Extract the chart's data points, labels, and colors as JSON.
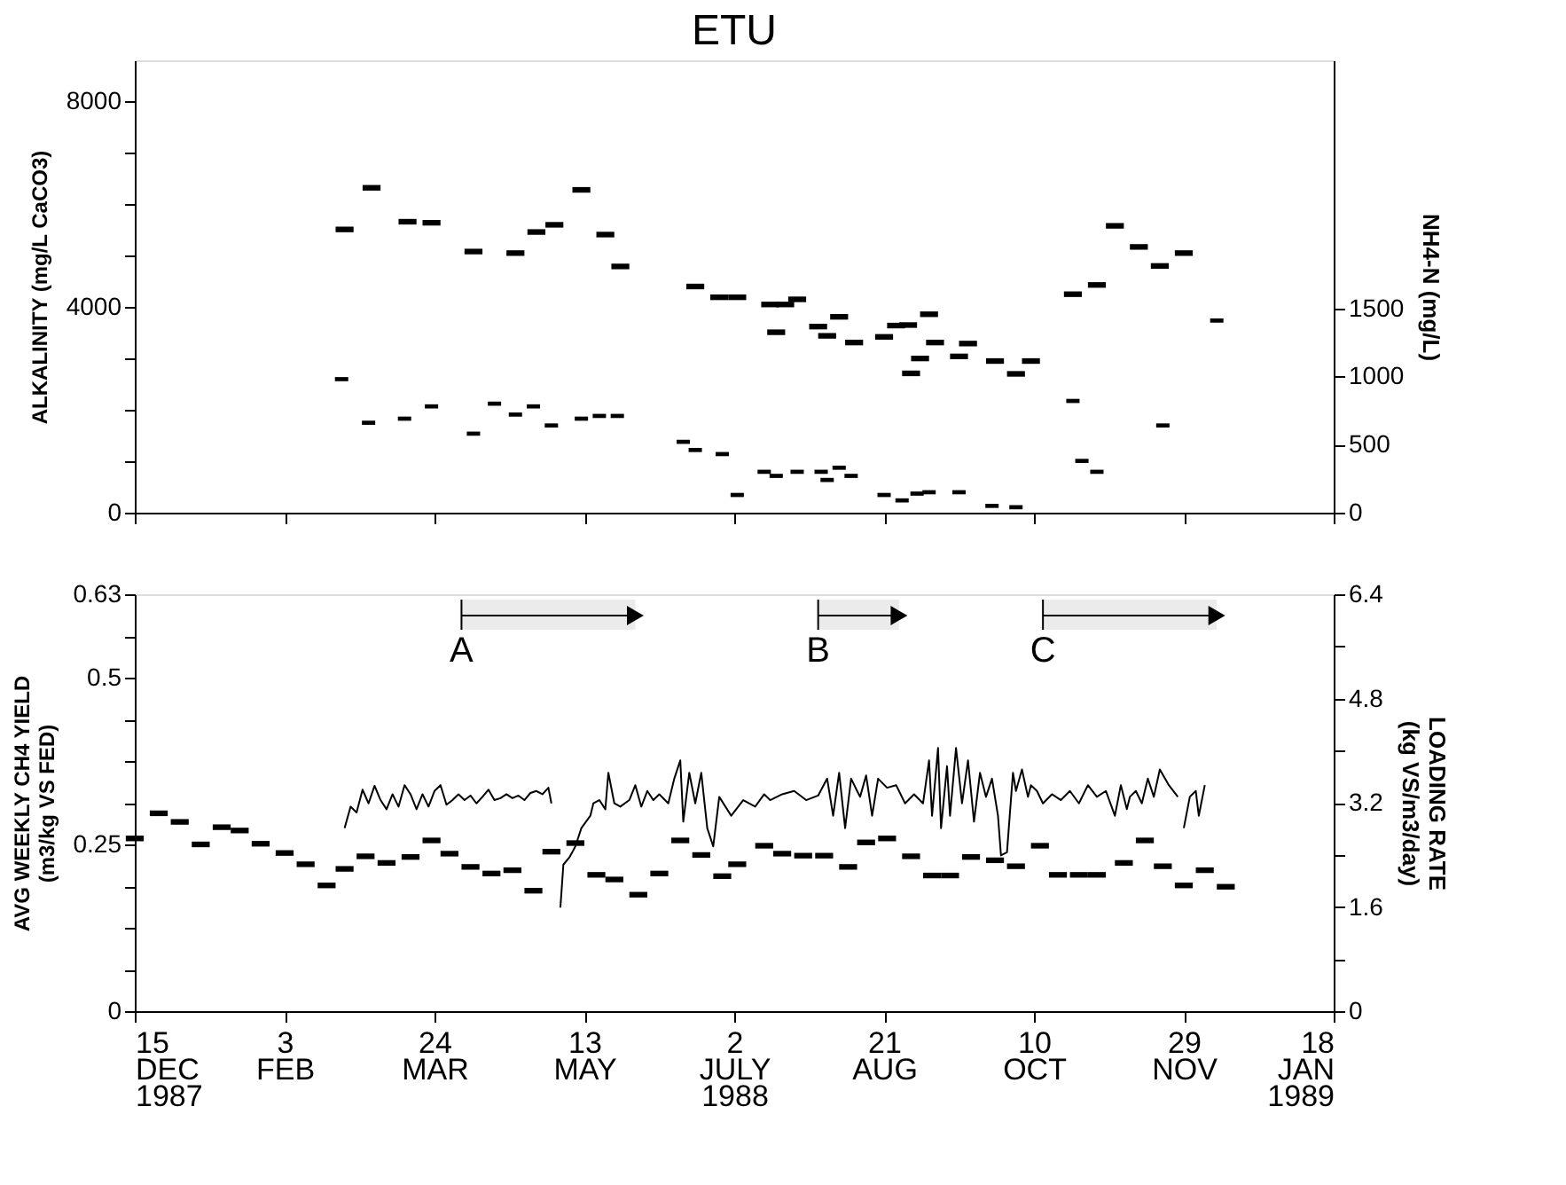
{
  "chart_data": [
    {
      "type": "scatter",
      "title": "ETU",
      "ylabel": "ALKALINITY (mg/L CaCO3)",
      "y2label": "NH4-N (mg/L)",
      "tick_labels": "y",
      "grid": false,
      "xlim": [
        "1987-12-15",
        "1989-01-18"
      ],
      "xticks": [
        {
          "value": "1987-12-15",
          "label": null
        },
        {
          "value": "1988-02-03",
          "label": null
        },
        {
          "value": "1988-03-24",
          "label": null
        },
        {
          "value": "1988-05-13",
          "label": null
        },
        {
          "value": "1988-07-02",
          "label": null
        },
        {
          "value": "1988-08-21",
          "label": null
        },
        {
          "value": "1988-10-10",
          "label": null
        },
        {
          "value": "1988-11-29",
          "label": null
        },
        {
          "value": "1989-01-18",
          "label": null
        }
      ],
      "ylim": [
        0,
        8800
      ],
      "yticks": [
        0,
        {
          "value": 1000,
          "label": null
        },
        {
          "value": 2000,
          "label": null
        },
        {
          "value": 3000,
          "label": null
        },
        4000,
        {
          "value": 5000,
          "label": null
        },
        {
          "value": 6000,
          "label": null
        },
        {
          "value": 7000,
          "label": null
        },
        8000
      ],
      "y2lim": [
        0,
        3320
      ],
      "y2ticks": [
        0,
        500,
        1000,
        1500
      ],
      "series": [
        {
          "color": "#000000",
          "marker": "square",
          "x": [
            "1988-02-23",
            "1988-03-03",
            "1988-03-15",
            "1988-03-23",
            "1988-04-06",
            "1988-04-20",
            "1988-04-27",
            "1988-05-03",
            "1988-05-12",
            "1988-05-20",
            "1988-05-25",
            "1988-06-19",
            "1988-06-27",
            "1988-07-03",
            "1988-07-14",
            "1988-07-16",
            "1988-07-19",
            "1988-07-23",
            "1988-07-30",
            "1988-08-02",
            "1988-08-06",
            "1988-08-11",
            "1988-08-21",
            "1988-08-25",
            "1988-08-29",
            "1988-08-30",
            "1988-09-02",
            "1988-09-05",
            "1988-09-07",
            "1988-09-15",
            "1988-09-18",
            "1988-09-27",
            "1988-10-04",
            "1988-10-09",
            "1988-10-23",
            "1988-10-31",
            "1988-11-06",
            "1988-11-14",
            "1988-11-21",
            "1988-11-29"
          ],
          "values": [
            5510,
            6320,
            5660,
            5640,
            5080,
            5050,
            5460,
            5600,
            6280,
            5410,
            4790,
            4400,
            4190,
            4190,
            4050,
            3510,
            4050,
            4150,
            3620,
            3440,
            3810,
            3310,
            3420,
            3640,
            3650,
            2710,
            3000,
            3860,
            3310,
            3040,
            3290,
            2950,
            2700,
            2950,
            4250,
            4430,
            5580,
            5170,
            4800,
            5050
          ]
        },
        {
          "color": "#000000",
          "marker": "square",
          "axis": "y2",
          "x": [
            "1988-02-22",
            "1988-03-02",
            "1988-03-14",
            "1988-03-23",
            "1988-04-06",
            "1988-04-13",
            "1988-04-20",
            "1988-04-26",
            "1988-05-02",
            "1988-05-12",
            "1988-05-18",
            "1988-05-24",
            "1988-06-15",
            "1988-06-19",
            "1988-06-28",
            "1988-07-03",
            "1988-07-12",
            "1988-07-16",
            "1988-07-23",
            "1988-07-31",
            "1988-08-02",
            "1988-08-06",
            "1988-08-10",
            "1988-08-21",
            "1988-08-27",
            "1988-09-01",
            "1988-09-05",
            "1988-09-15",
            "1988-09-26",
            "1988-10-04",
            "1988-10-23",
            "1988-10-26",
            "1988-10-31",
            "1988-11-22",
            "1988-12-10"
          ],
          "values": [
            980,
            660,
            690,
            780,
            580,
            800,
            720,
            780,
            640,
            690,
            710,
            710,
            520,
            460,
            430,
            130,
            300,
            270,
            300,
            300,
            240,
            330,
            270,
            130,
            90,
            140,
            150,
            150,
            50,
            40,
            820,
            380,
            300,
            640,
            1410
          ]
        }
      ]
    },
    {
      "type": "scatter",
      "ylabel": "AVG WEEKLY CH4 YIELD\n(m3/kg VS FED)",
      "y2label": "LOADING RATE\n(kg VS/m3/day)",
      "grid": false,
      "xlim": [
        "1987-12-15",
        "1989-01-18"
      ],
      "xticks": [
        {
          "value": "1987-12-15",
          "label": "15\nDEC\n1987"
        },
        {
          "value": "1988-02-03",
          "label": "3\nFEB"
        },
        {
          "value": "1988-03-24",
          "label": "24\nMAR"
        },
        {
          "value": "1988-05-13",
          "label": "13\nMAY"
        },
        {
          "value": "1988-07-02",
          "label": "2\nJULY\n1988"
        },
        {
          "value": "1988-08-21",
          "label": "21\nAUG"
        },
        {
          "value": "1988-10-10",
          "label": "10\nOCT"
        },
        {
          "value": "1988-11-29",
          "label": "29\nNOV"
        },
        {
          "value": "1989-01-18",
          "label": "18\nJAN\n1989"
        }
      ],
      "ylim": [
        0,
        0.63
      ],
      "yticks": [
        0,
        {
          "value": 0.063,
          "label": null
        },
        {
          "value": 0.126,
          "label": null
        },
        {
          "value": 0.189,
          "label": null
        },
        {
          "value": 0.252,
          "label": "0.25"
        },
        {
          "value": 0.315,
          "label": null
        },
        {
          "value": 0.378,
          "label": null
        },
        {
          "value": 0.441,
          "label": null
        },
        {
          "value": 0.504,
          "label": "0.5"
        },
        {
          "value": 0.567,
          "label": null
        },
        0.63
      ],
      "y2lim": [
        0,
        6.4
      ],
      "y2ticks": [
        0,
        {
          "value": 0.8,
          "label": null
        },
        1.6,
        {
          "value": 2.4,
          "label": null
        },
        3.2,
        {
          "value": 4.0,
          "label": null
        },
        4.8,
        {
          "value": 5.6,
          "label": null
        },
        6.4
      ],
      "bands": [
        {
          "axis": "x",
          "from": "1988-04-02",
          "to": "1988-05-30",
          "label": "A",
          "color": "#000000"
        },
        {
          "axis": "x",
          "from": "1988-07-30",
          "to": "1988-08-26",
          "label": "B",
          "color": "#000000"
        },
        {
          "axis": "x",
          "from": "1988-10-13",
          "to": "1988-12-10",
          "label": "C",
          "color": "#000000"
        }
      ],
      "series": [
        {
          "color": "#000000",
          "marker": "square",
          "x": [
            "1987-12-15",
            "1987-12-23",
            "1987-12-30",
            "1988-01-06",
            "1988-01-13",
            "1988-01-19",
            "1988-01-26",
            "1988-02-03",
            "1988-02-10",
            "1988-02-17",
            "1988-02-23",
            "1988-03-01",
            "1988-03-08",
            "1988-03-16",
            "1988-03-23",
            "1988-03-29",
            "1988-04-05",
            "1988-04-12",
            "1988-04-19",
            "1988-04-26",
            "1988-05-02",
            "1988-05-10",
            "1988-05-17",
            "1988-05-23",
            "1988-05-31",
            "1988-06-07",
            "1988-06-14",
            "1988-06-21",
            "1988-06-28",
            "1988-07-03",
            "1988-07-12",
            "1988-07-18",
            "1988-07-25",
            "1988-08-01",
            "1988-08-09",
            "1988-08-15",
            "1988-08-22",
            "1988-08-30",
            "1988-09-06",
            "1988-09-12",
            "1988-09-19",
            "1988-09-27",
            "1988-10-04",
            "1988-10-12",
            "1988-10-18",
            "1988-10-25",
            "1988-10-31",
            "1988-11-09",
            "1988-11-16",
            "1988-11-22",
            "1988-11-29",
            "1988-12-06",
            "1988-12-13"
          ],
          "values": [
            0.261,
            0.299,
            0.286,
            0.252,
            0.278,
            0.273,
            0.253,
            0.239,
            0.222,
            0.19,
            0.215,
            0.234,
            0.224,
            0.233,
            0.258,
            0.238,
            0.218,
            0.208,
            0.213,
            0.182,
            0.241,
            0.254,
            0.206,
            0.199,
            0.176,
            0.208,
            0.258,
            0.236,
            0.204,
            0.222,
            0.25,
            0.238,
            0.235,
            0.235,
            0.218,
            0.255,
            0.261,
            0.234,
            0.205,
            0.205,
            0.233,
            0.228,
            0.219,
            0.25,
            0.206,
            0.206,
            0.206,
            0.224,
            0.258,
            0.219,
            0.19,
            0.213,
            0.188
          ]
        },
        {
          "type": "line",
          "color": "#000000",
          "marker": "none",
          "line_style": "solid",
          "axis": "y2",
          "x": [
            "1988-02-23",
            "1988-02-25",
            "1988-02-27",
            "1988-02-29",
            "1988-03-02",
            "1988-03-04",
            "1988-03-06",
            "1988-03-08",
            "1988-03-10",
            "1988-03-12",
            "1988-03-14",
            "1988-03-16",
            "1988-03-18",
            "1988-03-20",
            "1988-03-22",
            "1988-03-24",
            "1988-03-26",
            "1988-03-28",
            "1988-03-30",
            "1988-04-01",
            "1988-04-03",
            "1988-04-05",
            "1988-04-07",
            "1988-04-09",
            "1988-04-11",
            "1988-04-13",
            "1988-04-15",
            "1988-04-17",
            "1988-04-19",
            "1988-04-21",
            "1988-04-23",
            "1988-04-25",
            "1988-04-27",
            "1988-04-29",
            "1988-05-01",
            "1988-05-02",
            "1988-05-04",
            "1988-05-05",
            "1988-05-06",
            "1988-05-08",
            "1988-05-10",
            "1988-05-12",
            "1988-05-15",
            "1988-05-16",
            "1988-05-18",
            "1988-05-20",
            "1988-05-21",
            "1988-05-23",
            "1988-05-25",
            "1988-05-28",
            "1988-05-30",
            "1988-06-01",
            "1988-06-03",
            "1988-06-05",
            "1988-06-07",
            "1988-06-10",
            "1988-06-12",
            "1988-06-14",
            "1988-06-15",
            "1988-06-17",
            "1988-06-19",
            "1988-06-21",
            "1988-06-23",
            "1988-06-25",
            "1988-06-27",
            "1988-07-01",
            "1988-07-05",
            "1988-07-09",
            "1988-07-12",
            "1988-07-14",
            "1988-07-18",
            "1988-07-22",
            "1988-07-26",
            "1988-07-30",
            "1988-08-02",
            "1988-08-04",
            "1988-08-06",
            "1988-08-08",
            "1988-08-10",
            "1988-08-12",
            "1988-08-13",
            "1988-08-15",
            "1988-08-17",
            "1988-08-19",
            "1988-08-22",
            "1988-08-25",
            "1988-08-28",
            "1988-08-31",
            "1988-09-03",
            "1988-09-05",
            "1988-09-06",
            "1988-09-08",
            "1988-09-09",
            "1988-09-11",
            "1988-09-12",
            "1988-09-14",
            "1988-09-16",
            "1988-09-18",
            "1988-09-20",
            "1988-09-22",
            "1988-09-24",
            "1988-09-26",
            "1988-09-28",
            "1988-09-29",
            "1988-10-01",
            "1988-10-03",
            "1988-10-04",
            "1988-10-06",
            "1988-10-08",
            "1988-10-09",
            "1988-10-11",
            "1988-10-13",
            "1988-10-16",
            "1988-10-19",
            "1988-10-22",
            "1988-10-25",
            "1988-10-28",
            "1988-10-31",
            "1988-11-03",
            "1988-11-06",
            "1988-11-08",
            "1988-11-10",
            "1988-11-11",
            "1988-11-13",
            "1988-11-15",
            "1988-11-17",
            "1988-11-19",
            "1988-11-21",
            "1988-11-24",
            "1988-11-27",
            "1988-11-28",
            "1988-11-29",
            "1988-12-01",
            "1988-12-03",
            "1988-12-04",
            "1988-12-06"
          ],
          "values": [
            2.81,
            3.14,
            3.05,
            3.4,
            3.19,
            3.46,
            3.24,
            3.1,
            3.33,
            3.14,
            3.47,
            3.33,
            3.1,
            3.33,
            3.14,
            3.38,
            3.47,
            3.17,
            3.24,
            3.33,
            3.24,
            3.31,
            3.19,
            3.29,
            3.4,
            3.24,
            3.27,
            3.33,
            3.27,
            3.31,
            3.24,
            3.35,
            3.38,
            3.33,
            3.43,
            3.19,
            null,
            1.59,
            2.25,
            2.36,
            2.53,
            2.81,
            3.0,
            3.19,
            3.24,
            3.1,
            3.66,
            3.19,
            3.14,
            3.24,
            3.47,
            3.14,
            3.38,
            3.24,
            3.33,
            3.19,
            3.57,
            3.85,
            2.91,
            3.66,
            3.19,
            3.66,
            2.81,
            2.53,
            3.29,
            3.0,
            3.24,
            3.14,
            3.33,
            3.24,
            3.33,
            3.38,
            3.24,
            3.31,
            3.57,
            3.0,
            3.66,
            2.81,
            3.57,
            3.38,
            3.29,
            3.62,
            3.0,
            3.57,
            3.43,
            3.47,
            3.19,
            3.33,
            3.19,
            3.85,
            3.0,
            4.04,
            2.81,
            3.76,
            3.0,
            4.04,
            3.19,
            3.85,
            2.91,
            3.66,
            3.29,
            3.57,
            3.0,
            2.39,
            2.44,
            3.66,
            3.38,
            3.71,
            3.29,
            3.47,
            3.38,
            3.19,
            3.33,
            3.24,
            3.38,
            3.19,
            3.47,
            3.29,
            3.38,
            3.0,
            3.47,
            3.1,
            3.29,
            3.38,
            3.19,
            3.57,
            3.29,
            3.71,
            3.47,
            3.29,
            null,
            2.81,
            3.29,
            3.38,
            3.0,
            3.47
          ]
        }
      ]
    }
  ]
}
